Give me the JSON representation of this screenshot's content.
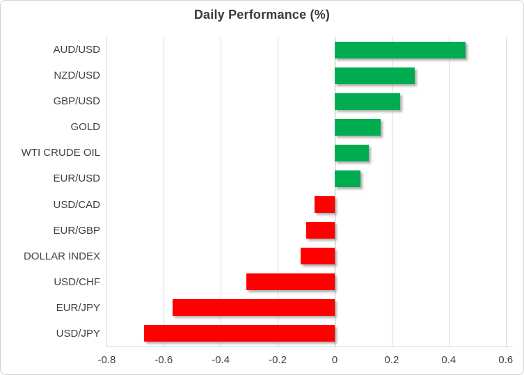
{
  "chart_data": {
    "type": "bar",
    "orientation": "horizontal",
    "title": "Daily Performance (%)",
    "categories": [
      "AUD/USD",
      "NZD/USD",
      "GBP/USD",
      "GOLD",
      "WTI CRUDE OIL",
      "EUR/USD",
      "USD/CAD",
      "EUR/GBP",
      "DOLLAR INDEX",
      "USD/CHF",
      "EUR/JPY",
      "USD/JPY"
    ],
    "values": [
      0.46,
      0.28,
      0.23,
      0.16,
      0.12,
      0.09,
      -0.07,
      -0.1,
      -0.12,
      -0.31,
      -0.57,
      -0.67
    ],
    "xlabel": "",
    "ylabel": "",
    "xlim": [
      -0.8,
      0.6
    ],
    "x_ticks": [
      -0.8,
      -0.6,
      -0.4,
      -0.2,
      0,
      0.2,
      0.4,
      0.6
    ],
    "x_tick_labels": [
      "-0.8",
      "-0.6",
      "-0.4",
      "-0.2",
      "0",
      "0.2",
      "0.4",
      "0.6"
    ],
    "grid": true,
    "legend": false,
    "colors": {
      "positive": "#00AC50",
      "negative": "#FF0000",
      "gridline": "#d9d9d9",
      "zero_line": "#b3b3b3",
      "text": "#404040",
      "title": "#3a3a3a"
    }
  }
}
